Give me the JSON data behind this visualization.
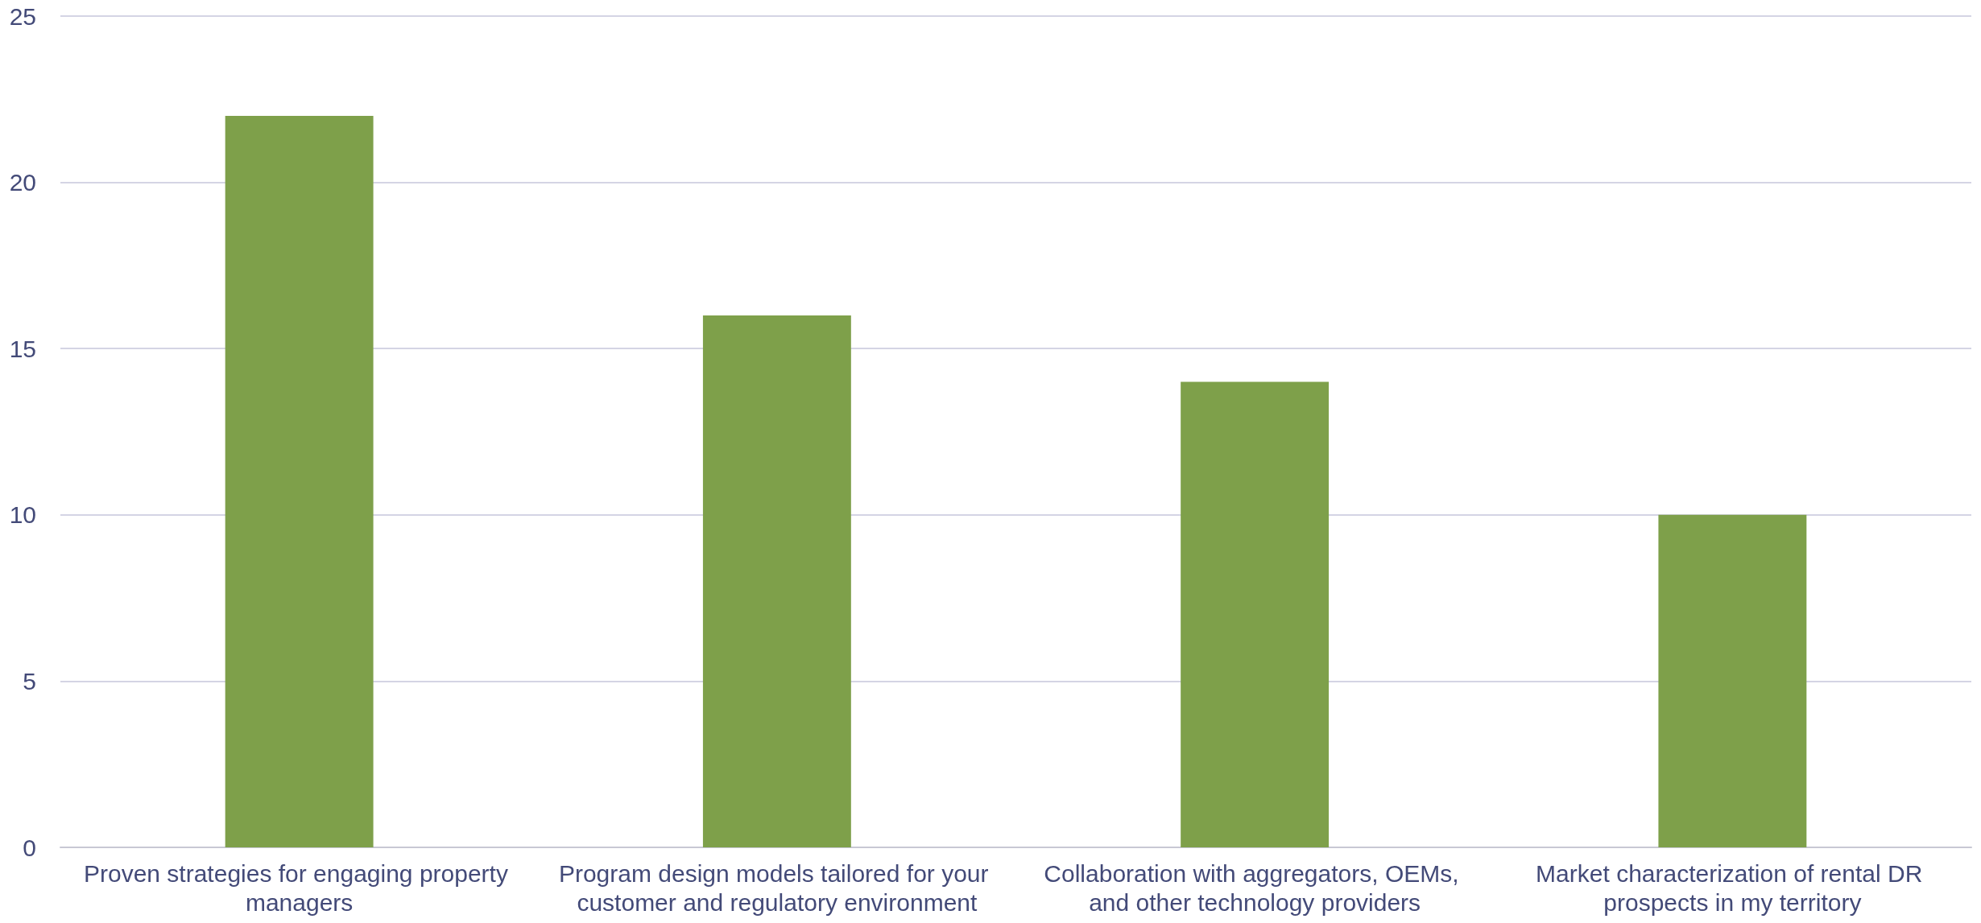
{
  "chart_data": {
    "type": "bar",
    "categories": [
      "Proven strategies for engaging property managers",
      "Program design models tailored for your customer and regulatory environment",
      "Collaboration with aggregators, OEMs, and other technology providers",
      "Market characterization of rental DR prospects in my territory"
    ],
    "values": [
      22,
      16,
      14,
      10
    ],
    "color": "#7ea04a",
    "ylim": [
      0,
      25
    ],
    "yticks": [
      0,
      5,
      10,
      15,
      20,
      25
    ],
    "grid": "y"
  }
}
